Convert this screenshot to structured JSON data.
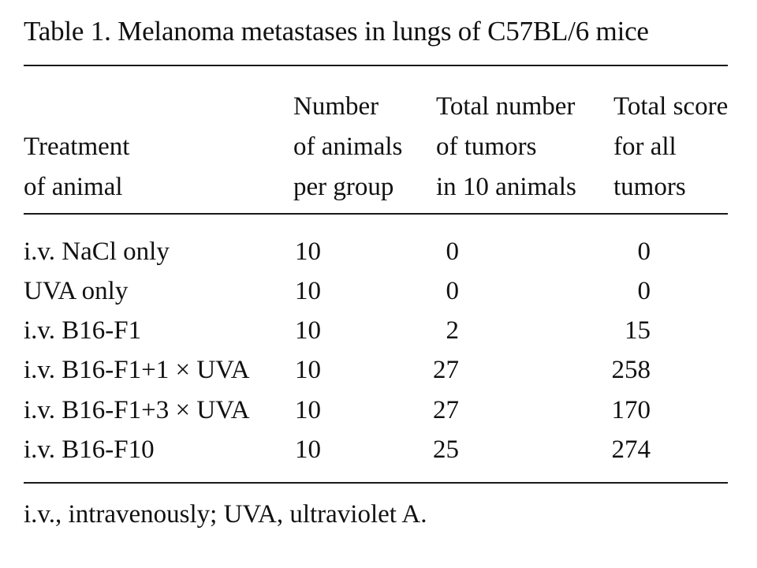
{
  "table": {
    "caption": "Table 1.  Melanoma metastases in lungs of C57BL/6 mice",
    "headers": {
      "treatment": [
        "",
        "Treatment",
        "of animal"
      ],
      "animals": [
        "Number",
        "of animals",
        "per group"
      ],
      "tumors": [
        "Total number",
        "of tumors",
        "in 10 animals"
      ],
      "score": [
        "Total score",
        "for all",
        "tumors"
      ]
    },
    "rows": [
      {
        "treatment": "i.v. NaCl only",
        "animals": "10",
        "tumors": "0",
        "score": "0"
      },
      {
        "treatment": "UVA only",
        "animals": "10",
        "tumors": "0",
        "score": "0"
      },
      {
        "treatment": "i.v. B16-F1",
        "animals": "10",
        "tumors": "2",
        "score": "15"
      },
      {
        "treatment": "i.v. B16-F1+1 × UVA",
        "animals": "10",
        "tumors": "27",
        "score": "258"
      },
      {
        "treatment": "i.v. B16-F1+3 × UVA",
        "animals": "10",
        "tumors": "27",
        "score": "170"
      },
      {
        "treatment": "i.v. B16-F10",
        "animals": "10",
        "tumors": "25",
        "score": "274"
      }
    ],
    "footnote": "i.v., intravenously; UVA, ultraviolet A."
  }
}
